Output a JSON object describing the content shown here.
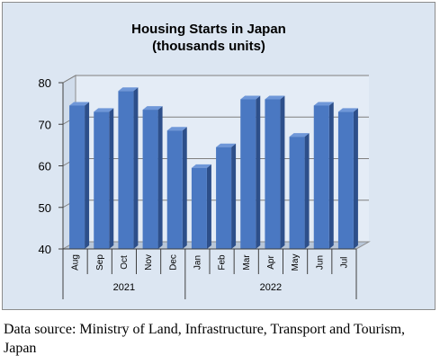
{
  "chart_data": {
    "type": "bar",
    "title_line1": "Housing Starts in Japan",
    "title_line2": "(thousands units)",
    "categories": [
      "Aug",
      "Sep",
      "Oct",
      "Nov",
      "Dec",
      "Jan",
      "Feb",
      "Mar",
      "Apr",
      "May",
      "Jun",
      "Jul"
    ],
    "values": [
      74.5,
      73.0,
      78.0,
      73.5,
      68.5,
      59.5,
      64.5,
      76.0,
      76.0,
      67.0,
      74.5,
      73.0
    ],
    "year_groups": [
      {
        "label": "2021",
        "count": 5
      },
      {
        "label": "2022",
        "count": 7
      }
    ],
    "ylim": [
      40,
      80
    ],
    "yticks": [
      "40",
      "50",
      "60",
      "70",
      "80"
    ],
    "grid": true,
    "bar_color": "#4a78c2"
  },
  "source_note": "Data source: Ministry of Land, Infrastructure, Transport and Tourism, Japan"
}
